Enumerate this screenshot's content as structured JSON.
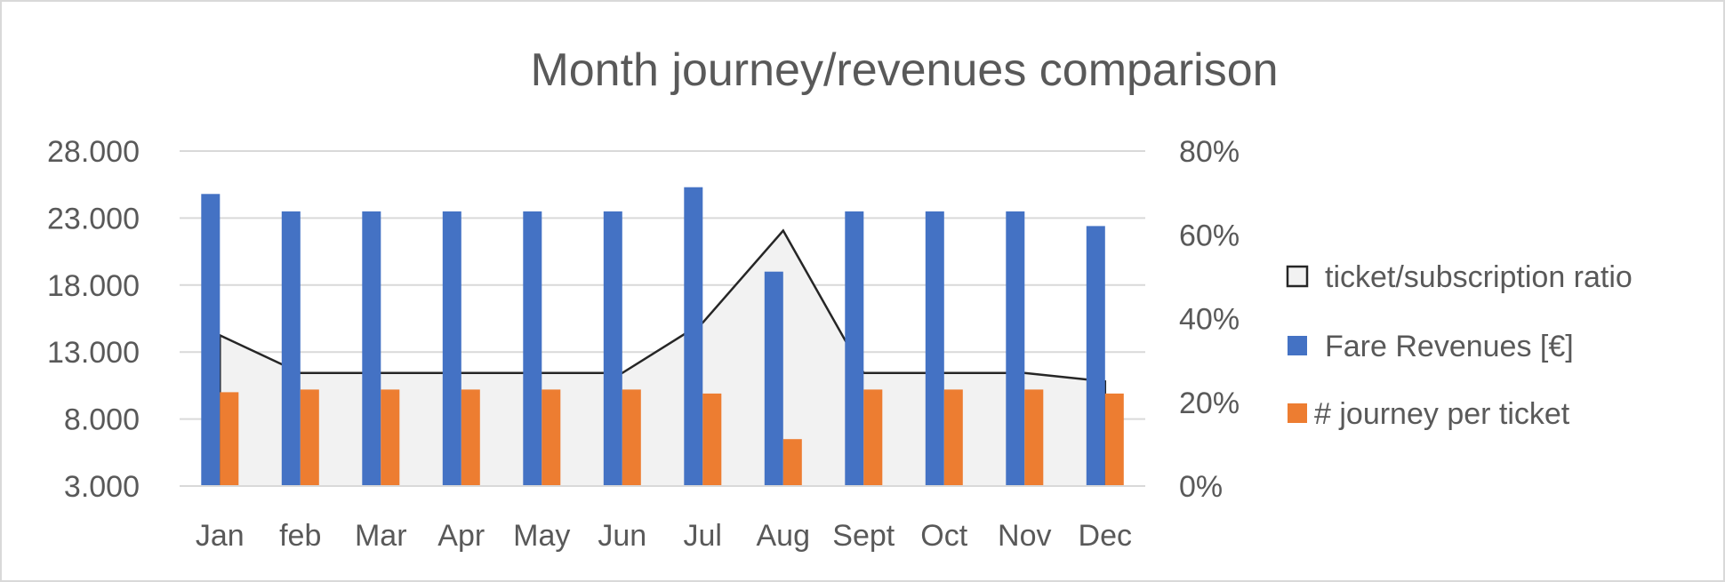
{
  "chart_data": {
    "type": "bar",
    "title": "Month journey/revenues comparison",
    "categories": [
      "Jan",
      "feb",
      "Mar",
      "Apr",
      "May",
      "Jun",
      "Jul",
      "Aug",
      "Sept",
      "Oct",
      "Nov",
      "Dec"
    ],
    "y_left": {
      "ticks": [
        "28.000",
        "23.000",
        "18.000",
        "13.000",
        "8.000",
        "3.000"
      ],
      "tick_values": [
        28000,
        23000,
        18000,
        13000,
        8000,
        3000
      ],
      "ylim": [
        3000,
        28000
      ]
    },
    "y_right": {
      "ticks": [
        "80%",
        "60%",
        "40%",
        "20%",
        "0%"
      ],
      "tick_values": [
        0.8,
        0.6,
        0.4,
        0.2,
        0.0
      ],
      "ylim": [
        0,
        0.8
      ]
    },
    "grid": true,
    "legend_position": "right",
    "series": [
      {
        "name": "ticket/subscription ratio",
        "type": "area",
        "axis": "right",
        "color": "#f2f2f2",
        "line_color": "#262626",
        "values": [
          0.36,
          0.27,
          0.27,
          0.27,
          0.27,
          0.27,
          0.39,
          0.61,
          0.27,
          0.27,
          0.27,
          0.25
        ]
      },
      {
        "name": "Fare Revenues [€]",
        "type": "bar",
        "axis": "left",
        "color": "#4472c4",
        "values": [
          24800,
          23500,
          23500,
          23500,
          23500,
          23500,
          25300,
          19000,
          23500,
          23500,
          23500,
          22400
        ]
      },
      {
        "name": "# journey per ticket",
        "type": "bar",
        "axis": "left",
        "color": "#ed7d31",
        "values": [
          10000,
          10200,
          10200,
          10200,
          10200,
          10200,
          9900,
          6500,
          10200,
          10200,
          10200,
          9900
        ]
      }
    ]
  }
}
